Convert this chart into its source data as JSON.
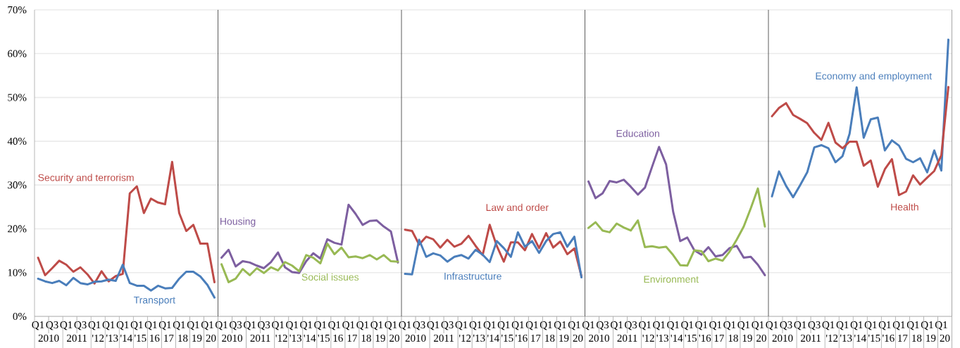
{
  "chart_data": [
    {
      "type": "line",
      "categories": [
        "Q1",
        null,
        "Q3",
        null,
        "Q1",
        null,
        "Q3",
        null,
        "Q1",
        null,
        "Q1",
        null,
        "Q1",
        null,
        "Q1",
        null,
        "Q1",
        null,
        "Q1",
        null,
        "Q1",
        null,
        "Q1",
        null,
        "Q1",
        null
      ],
      "annotations": [
        "2010",
        "2011",
        "'12",
        "'13",
        "'14",
        "'15",
        "16",
        "17",
        "18",
        "19",
        "20"
      ],
      "series": [
        {
          "name": "Security and terrorism",
          "color": "#be4b48",
          "values": [
            13.4,
            9.4,
            11.0,
            12.7,
            11.8,
            10.2,
            11.2,
            9.6,
            7.5,
            10.3,
            8.0,
            9.2,
            9.7,
            28.1,
            29.7,
            23.6,
            26.9,
            26.0,
            25.6,
            35.3,
            23.6,
            19.5,
            20.9,
            16.6,
            16.6,
            7.8
          ]
        },
        {
          "name": "Transport",
          "color": "#4a7ebb",
          "values": [
            8.6,
            8.0,
            7.6,
            8.1,
            7.1,
            8.8,
            7.6,
            7.3,
            7.9,
            8.0,
            8.4,
            8.1,
            11.8,
            7.6,
            7.0,
            7.0,
            5.9,
            7.0,
            6.4,
            6.5,
            8.6,
            10.2,
            10.2,
            9.1,
            7.2,
            4.3
          ]
        }
      ],
      "ylim": [
        0,
        70
      ],
      "yticks": [
        {
          "value": 0,
          "label": "0%"
        },
        {
          "value": 10,
          "label": "10%"
        },
        {
          "value": 20,
          "label": "20%"
        },
        {
          "value": 30,
          "label": "30%"
        },
        {
          "value": 40,
          "label": "40%"
        },
        {
          "value": 50,
          "label": "50%"
        },
        {
          "value": 60,
          "label": "60%"
        },
        {
          "value": 70,
          "label": "70%"
        }
      ],
      "grid": "y"
    },
    {
      "type": "line",
      "categories": [
        "Q1",
        null,
        "Q3",
        null,
        "Q1",
        null,
        "Q3",
        null,
        "Q1",
        null,
        "Q1",
        null,
        "Q1",
        null,
        "Q1",
        null,
        "Q1",
        null,
        "Q1",
        null,
        "Q1",
        null,
        "Q1",
        null,
        "Q1",
        null
      ],
      "annotations": [
        "2010",
        "2011",
        "'12",
        "'13",
        "'14",
        "'15",
        "16",
        "17",
        "18",
        "19",
        "20"
      ],
      "series": [
        {
          "name": "Housing",
          "color": "#7d5fa0",
          "values": [
            13.4,
            15.2,
            11.4,
            12.6,
            12.3,
            11.6,
            11.0,
            12.4,
            14.6,
            11.2,
            10.1,
            9.9,
            12.6,
            14.4,
            13.2,
            17.6,
            16.8,
            16.4,
            25.5,
            23.4,
            20.9,
            21.8,
            21.9,
            20.5,
            19.4,
            12.3
          ]
        },
        {
          "name": "Social issues",
          "color": "#98b954",
          "values": [
            11.9,
            7.8,
            8.6,
            10.8,
            9.4,
            11.0,
            9.9,
            11.2,
            10.5,
            12.4,
            11.6,
            10.3,
            14.0,
            13.4,
            12.1,
            16.6,
            14.2,
            15.7,
            13.5,
            13.7,
            13.3,
            14.0,
            13.0,
            14.0,
            12.6,
            12.5
          ]
        }
      ],
      "ylim": [
        0,
        70
      ],
      "yticks": [
        {
          "value": 0,
          "label": null
        },
        {
          "value": 10,
          "label": null
        },
        {
          "value": 20,
          "label": null
        },
        {
          "value": 30,
          "label": null
        },
        {
          "value": 40,
          "label": null
        },
        {
          "value": 50,
          "label": null
        },
        {
          "value": 60,
          "label": null
        },
        {
          "value": 70,
          "label": null
        }
      ],
      "grid": "y",
      "tick_labels": "x"
    },
    {
      "type": "line",
      "categories": [
        "Q1",
        null,
        "Q3",
        null,
        "Q1",
        null,
        "Q3",
        null,
        "Q1",
        null,
        "Q1",
        null,
        "Q1",
        null,
        "Q1",
        null,
        "Q1",
        null,
        "Q1",
        null,
        "Q1",
        null,
        "Q1",
        null,
        "Q1",
        null
      ],
      "annotations": [
        "2010",
        "2011",
        "'12",
        "'13",
        "'14",
        "'15",
        "'16",
        "17",
        "18",
        "19",
        "20"
      ],
      "series": [
        {
          "name": "Law and order",
          "color": "#be4b48",
          "values": [
            19.8,
            19.5,
            16.4,
            18.2,
            17.6,
            15.7,
            17.5,
            15.9,
            16.6,
            18.4,
            16.1,
            14.0,
            20.9,
            16.1,
            12.5,
            16.9,
            16.9,
            15.1,
            18.8,
            15.6,
            19.0,
            15.7,
            17.1,
            14.2,
            15.5,
            9.2
          ]
        },
        {
          "name": "Infrastructure",
          "color": "#4a7ebb",
          "values": [
            9.7,
            9.6,
            17.5,
            13.6,
            14.4,
            13.9,
            12.5,
            13.6,
            14.0,
            13.2,
            15.2,
            14.1,
            12.4,
            17.2,
            15.6,
            13.6,
            19.2,
            15.9,
            17.2,
            14.5,
            17.2,
            18.8,
            19.2,
            15.9,
            18.2,
            8.9
          ]
        }
      ],
      "ylim": [
        0,
        70
      ],
      "yticks": [
        {
          "value": 0,
          "label": null
        },
        {
          "value": 10,
          "label": null
        },
        {
          "value": 20,
          "label": null
        },
        {
          "value": 30,
          "label": null
        },
        {
          "value": 40,
          "label": null
        },
        {
          "value": 50,
          "label": null
        },
        {
          "value": 60,
          "label": null
        },
        {
          "value": 70,
          "label": null
        }
      ],
      "grid": "y",
      "tick_labels": "x"
    },
    {
      "type": "line",
      "categories": [
        "Q1",
        null,
        "Q3",
        null,
        "Q1",
        null,
        "Q3",
        null,
        "Q1",
        null,
        "Q1",
        null,
        "Q1",
        null,
        "Q1",
        null,
        "Q1",
        null,
        "Q1",
        null,
        "Q1",
        null,
        "Q1",
        null,
        "Q1",
        null
      ],
      "annotations": [
        "2010",
        "2011",
        "'12",
        "'13",
        "'14",
        "'15",
        "'16",
        "17",
        "18",
        "19",
        "20"
      ],
      "series": [
        {
          "name": "Education",
          "color": "#7d5fa0",
          "values": [
            30.8,
            27.0,
            28.1,
            30.9,
            30.6,
            31.2,
            29.6,
            27.8,
            29.4,
            34.1,
            38.7,
            34.7,
            23.9,
            17.2,
            18.0,
            15.1,
            14.1,
            15.8,
            13.7,
            14.0,
            15.6,
            16.1,
            13.4,
            13.6,
            11.8,
            9.4
          ]
        },
        {
          "name": "Environment",
          "color": "#98b954",
          "values": [
            20.2,
            21.5,
            19.6,
            19.2,
            21.2,
            20.3,
            19.6,
            21.9,
            15.8,
            16.0,
            15.7,
            15.9,
            14.0,
            11.7,
            11.6,
            15.1,
            14.9,
            12.6,
            13.2,
            12.7,
            14.8,
            17.5,
            20.5,
            24.7,
            29.2,
            20.5
          ]
        }
      ],
      "ylim": [
        0,
        70
      ],
      "yticks": [
        {
          "value": 0,
          "label": null
        },
        {
          "value": 10,
          "label": null
        },
        {
          "value": 20,
          "label": null
        },
        {
          "value": 30,
          "label": null
        },
        {
          "value": 40,
          "label": null
        },
        {
          "value": 50,
          "label": null
        },
        {
          "value": 60,
          "label": null
        },
        {
          "value": 70,
          "label": null
        }
      ],
      "grid": "y",
      "tick_labels": "x"
    },
    {
      "type": "line",
      "categories": [
        "Q1",
        null,
        "Q3",
        null,
        "Q1",
        null,
        "Q3",
        null,
        "Q1",
        null,
        "Q1",
        null,
        "Q1",
        null,
        "Q1",
        null,
        "Q1",
        null,
        "Q1",
        null,
        "Q1",
        null,
        "Q1",
        null,
        "Q1",
        null
      ],
      "annotations": [
        "2010",
        "2011",
        "'12",
        "'13",
        "'14",
        "'15",
        "'16",
        "17",
        "18",
        "19",
        "20"
      ],
      "series": [
        {
          "name": "Economy and employment",
          "color": "#4a7ebb",
          "values": [
            27.4,
            33.1,
            29.8,
            27.2,
            30.0,
            32.9,
            38.6,
            39.1,
            38.4,
            35.2,
            36.6,
            41.7,
            52.3,
            40.8,
            45.0,
            45.4,
            37.9,
            40.2,
            39.0,
            36.0,
            35.2,
            36.1,
            32.9,
            37.9,
            33.3,
            63.2
          ]
        },
        {
          "name": "Health",
          "color": "#be4b48",
          "values": [
            45.7,
            47.6,
            48.7,
            46.0,
            45.1,
            44.1,
            41.9,
            40.3,
            44.2,
            39.7,
            38.4,
            39.9,
            39.9,
            34.4,
            35.6,
            29.6,
            33.6,
            35.9,
            27.7,
            28.5,
            32.2,
            30.1,
            31.7,
            33.2,
            36.8,
            52.4
          ]
        }
      ],
      "ylim": [
        0,
        70
      ],
      "yticks": [
        {
          "value": 0,
          "label": null
        },
        {
          "value": 10,
          "label": null
        },
        {
          "value": 20,
          "label": null
        },
        {
          "value": 30,
          "label": null
        },
        {
          "value": 40,
          "label": null
        },
        {
          "value": 50,
          "label": null
        },
        {
          "value": 60,
          "label": null
        },
        {
          "value": 70,
          "label": null
        }
      ],
      "grid": "y",
      "tick_labels": "x"
    }
  ]
}
